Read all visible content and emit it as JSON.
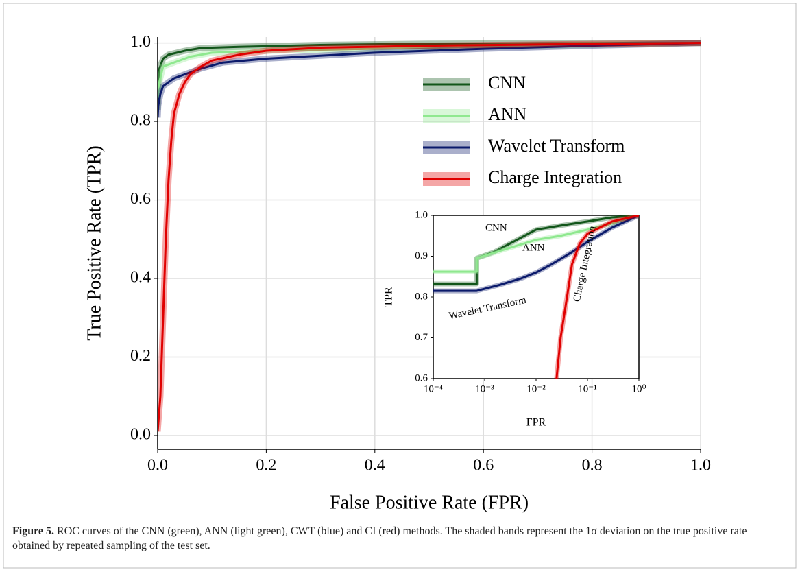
{
  "chart_data": [
    {
      "type": "line",
      "xlabel": "False Positive Rate (FPR)",
      "ylabel": "True Positive Rate (TPR)",
      "xlim": [
        0,
        1
      ],
      "ylim": [
        -0.035,
        1.015
      ],
      "xticks": [
        {
          "value": 0,
          "label": "0.0"
        },
        0.2,
        0.4,
        0.6,
        0.8,
        {
          "value": 1,
          "label": "1.0"
        }
      ],
      "yticks": [
        {
          "value": 0,
          "label": "0.0"
        },
        0.2,
        0.4,
        0.6,
        0.8,
        {
          "value": 1,
          "label": "1.0"
        }
      ],
      "grid": true,
      "legend": "upper right",
      "series": [
        {
          "name": "CNN",
          "color": "#12561a",
          "x": [
            0,
            0.002,
            0.01,
            0.02,
            0.05,
            0.08,
            0.15,
            0.3,
            0.5,
            0.7,
            1
          ],
          "values": [
            0.83,
            0.93,
            0.96,
            0.97,
            0.98,
            0.987,
            0.99,
            0.995,
            0.998,
            0.999,
            1
          ]
        },
        {
          "name": "ANN",
          "color": "#8fe88f",
          "x": [
            0,
            0.003,
            0.01,
            0.03,
            0.06,
            0.1,
            0.2,
            0.4,
            0.6,
            0.8,
            1
          ],
          "values": [
            0.86,
            0.9,
            0.94,
            0.95,
            0.965,
            0.975,
            0.98,
            0.985,
            0.99,
            0.995,
            1
          ]
        },
        {
          "name": "Wavelet Transform",
          "color": "#0b1a6b",
          "x": [
            0,
            0.001,
            0.005,
            0.01,
            0.02,
            0.03,
            0.05,
            0.08,
            0.12,
            0.2,
            0.4,
            0.6,
            0.8,
            1
          ],
          "values": [
            0.81,
            0.84,
            0.87,
            0.89,
            0.9,
            0.91,
            0.92,
            0.935,
            0.95,
            0.96,
            0.975,
            0.985,
            0.993,
            1
          ]
        },
        {
          "name": "Charge Integration",
          "color": "#e00000",
          "x": [
            0,
            0.005,
            0.01,
            0.015,
            0.02,
            0.025,
            0.03,
            0.04,
            0.05,
            0.06,
            0.08,
            0.1,
            0.15,
            0.2,
            0.3,
            0.5,
            0.7,
            1
          ],
          "values": [
            0.01,
            0.1,
            0.3,
            0.5,
            0.65,
            0.75,
            0.82,
            0.87,
            0.9,
            0.92,
            0.94,
            0.955,
            0.97,
            0.98,
            0.988,
            0.993,
            0.996,
            1
          ]
        }
      ]
    },
    {
      "type": "line",
      "xscale": "log",
      "xlabel": "FPR",
      "ylabel": "TPR",
      "xlim": [
        0.0001,
        1
      ],
      "ylim": [
        0.6,
        1
      ],
      "xticks": [
        {
          "value": 0.0001,
          "label": "10⁻⁴"
        },
        {
          "value": 0.001,
          "label": "10⁻³"
        },
        {
          "value": 0.01,
          "label": "10⁻²"
        },
        {
          "value": 0.1,
          "label": "10⁻¹"
        },
        {
          "value": 1,
          "label": "10⁰"
        }
      ],
      "yticks": [
        0.6,
        0.7,
        0.8,
        0.9,
        {
          "value": 1,
          "label": "1.0"
        }
      ],
      "grid": false,
      "annotations": [
        "CNN",
        "ANN",
        "Wavelet Transform",
        "Charge Integration"
      ],
      "series": [
        {
          "name": "CNN",
          "color": "#12561a",
          "x": [
            0.0001,
            0.0007,
            0.0007,
            0.0015,
            0.003,
            0.01,
            0.03,
            0.1,
            0.3,
            1
          ],
          "values": [
            0.832,
            0.832,
            0.895,
            0.91,
            0.93,
            0.965,
            0.975,
            0.985,
            0.995,
            1
          ]
        },
        {
          "name": "ANN",
          "color": "#8fe88f",
          "x": [
            0.0001,
            0.0007,
            0.0007,
            0.003,
            0.01,
            0.03,
            0.1,
            0.3,
            1
          ],
          "values": [
            0.862,
            0.862,
            0.895,
            0.92,
            0.94,
            0.95,
            0.965,
            0.98,
            1
          ]
        },
        {
          "name": "Wavelet Transform",
          "color": "#0b1a6b",
          "x": [
            0.0001,
            0.0007,
            0.002,
            0.005,
            0.01,
            0.02,
            0.05,
            0.1,
            0.3,
            1
          ],
          "values": [
            0.815,
            0.815,
            0.83,
            0.845,
            0.86,
            0.88,
            0.91,
            0.935,
            0.97,
            1
          ]
        },
        {
          "name": "Charge Integration",
          "color": "#e00000",
          "x": [
            0.025,
            0.03,
            0.04,
            0.05,
            0.07,
            0.1,
            0.3,
            1
          ],
          "values": [
            0.6,
            0.7,
            0.8,
            0.88,
            0.93,
            0.955,
            0.985,
            1
          ]
        }
      ]
    }
  ],
  "caption": {
    "label": "Figure 5.",
    "text": "ROC curves of the CNN (green), ANN (light green), CWT (blue) and CI (red) methods. The shaded bands represent the 1σ deviation on the true positive rate obtained by repeated sampling of the test set."
  }
}
